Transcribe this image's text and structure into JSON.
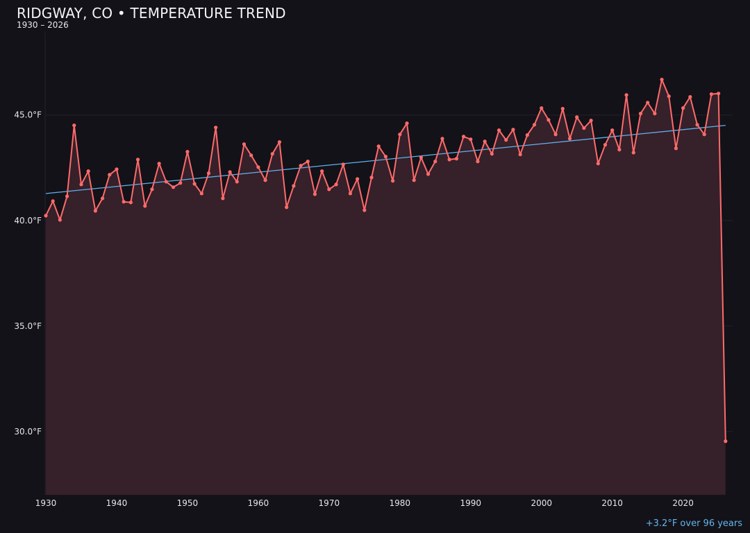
{
  "chart_data": {
    "type": "line",
    "title": "RIDGWAY, CO • TEMPERATURE TREND",
    "subtitle": "1930 – 2026",
    "annotation": "+3.2°F over 96 years",
    "xlabel": "",
    "ylabel": "",
    "xlim": [
      1930,
      2027
    ],
    "ylim": [
      27,
      49.3
    ],
    "grid": true,
    "x_ticks": [
      "1930",
      "1940",
      "1950",
      "1960",
      "1970",
      "1980",
      "1990",
      "2000",
      "2010",
      "2020"
    ],
    "y_ticks": [
      {
        "value": 30,
        "label": "30.0°F"
      },
      {
        "value": 35,
        "label": "35.0°F"
      },
      {
        "value": 40,
        "label": "40.0°F"
      },
      {
        "value": 45,
        "label": "45.0°F"
      }
    ],
    "colors": {
      "background": "#131218",
      "line": "#ff6b6b",
      "fill": "#36202a",
      "trend": "#5fb3f0",
      "annotation": "#62b6ef"
    },
    "series": [
      {
        "x": [
          1930,
          1931,
          1932,
          1933,
          1934,
          1935,
          1936,
          1937,
          1938,
          1939,
          1940,
          1941,
          1942,
          1943,
          1944,
          1945,
          1946,
          1947,
          1948,
          1949,
          1950,
          1951,
          1952,
          1953,
          1954,
          1955,
          1956,
          1957,
          1958,
          1959,
          1960,
          1961,
          1962,
          1963,
          1964,
          1965,
          1966,
          1967,
          1968,
          1969,
          1970,
          1971,
          1972,
          1973,
          1974,
          1975,
          1976,
          1977,
          1978,
          1979,
          1980,
          1981,
          1982,
          1983,
          1984,
          1985,
          1986,
          1987,
          1988,
          1989,
          1990,
          1991,
          1992,
          1993,
          1994,
          1995,
          1996,
          1997,
          1998,
          1999,
          2000,
          2001,
          2002,
          2003,
          2004,
          2005,
          2006,
          2007,
          2008,
          2009,
          2010,
          2011,
          2012,
          2013,
          2014,
          2015,
          2016,
          2017,
          2018,
          2019,
          2020,
          2021,
          2022,
          2023,
          2024,
          2025,
          2026
        ],
        "values": [
          40.23,
          40.92,
          40.03,
          41.15,
          44.51,
          41.71,
          42.34,
          40.46,
          41.05,
          42.17,
          42.43,
          40.89,
          40.86,
          42.89,
          40.69,
          41.48,
          42.7,
          41.84,
          41.58,
          41.78,
          43.26,
          41.74,
          41.28,
          42.24,
          44.41,
          41.05,
          42.3,
          41.84,
          43.62,
          43.09,
          42.53,
          41.91,
          43.16,
          43.72,
          40.63,
          41.64,
          42.6,
          42.8,
          41.25,
          42.34,
          41.48,
          41.71,
          42.66,
          41.28,
          41.97,
          40.49,
          42.04,
          43.52,
          43.03,
          41.88,
          44.08,
          44.61,
          41.91,
          42.99,
          42.2,
          42.8,
          43.88,
          42.89,
          42.93,
          43.98,
          43.85,
          42.8,
          43.75,
          43.16,
          44.28,
          43.82,
          44.31,
          43.13,
          44.05,
          44.54,
          45.33,
          44.77,
          44.08,
          45.3,
          43.88,
          44.9,
          44.38,
          44.74,
          42.7,
          43.59,
          44.28,
          43.36,
          45.95,
          43.22,
          45.07,
          45.59,
          45.07,
          46.68,
          45.89,
          43.42,
          45.33,
          45.86,
          44.54,
          44.08,
          45.99,
          46.02,
          29.54
        ]
      }
    ],
    "trend": {
      "x": [
        1930,
        2026
      ],
      "values": [
        41.28,
        44.51
      ]
    }
  }
}
